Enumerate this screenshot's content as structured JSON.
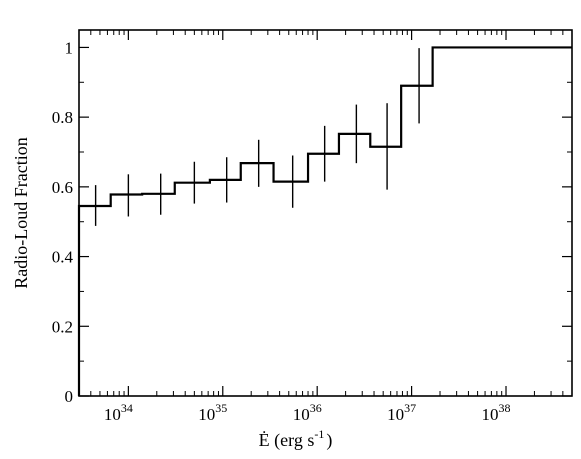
{
  "chart_data": {
    "type": "line",
    "title": "",
    "xlabel": "Ė (erg s",
    "xlabel_sup": "-1",
    "xlabel_end": ")",
    "ylabel": "Radio-Loud Fraction",
    "x_scale": "log",
    "xlim": [
      3e+33,
      5e+38
    ],
    "ylim": [
      0,
      1.05
    ],
    "grid": false,
    "x_ticks": [
      {
        "value": 1e+34,
        "base": "10",
        "exp": "34"
      },
      {
        "value": 1e+35,
        "base": "10",
        "exp": "35"
      },
      {
        "value": 1e+36,
        "base": "10",
        "exp": "36"
      },
      {
        "value": 1e+37,
        "base": "10",
        "exp": "37"
      },
      {
        "value": 1e+38,
        "base": "10",
        "exp": "38"
      }
    ],
    "y_ticks": [
      {
        "value": 0,
        "label": "0"
      },
      {
        "value": 0.2,
        "label": "0.2"
      },
      {
        "value": 0.4,
        "label": "0.4"
      },
      {
        "value": 0.6,
        "label": "0.6"
      },
      {
        "value": 0.8,
        "label": "0.8"
      },
      {
        "value": 1.0,
        "label": "1"
      }
    ],
    "series": [
      {
        "step_x": [
          3e+33,
          3e+33,
          6.5e+33,
          1.4e+34,
          3.1e+34,
          7.3e+34,
          1.55e+35,
          3.45e+35,
          8e+35,
          1.7e+36,
          3.65e+36,
          7.75e+36,
          1.67e+37,
          5e+38
        ],
        "step_y": [
          0,
          0.545,
          0.578,
          0.58,
          0.612,
          0.62,
          0.668,
          0.615,
          0.695,
          0.752,
          0.715,
          0.89,
          1.0
        ],
        "points": [
          {
            "x": 4.5e+33,
            "y": 0.545,
            "lo": 0.488,
            "hi": 0.605
          },
          {
            "x": 1e+34,
            "y": 0.578,
            "lo": 0.515,
            "hi": 0.636
          },
          {
            "x": 2.2e+34,
            "y": 0.58,
            "lo": 0.52,
            "hi": 0.638
          },
          {
            "x": 5e+34,
            "y": 0.612,
            "lo": 0.552,
            "hi": 0.672
          },
          {
            "x": 1.1e+35,
            "y": 0.62,
            "lo": 0.555,
            "hi": 0.685
          },
          {
            "x": 2.4e+35,
            "y": 0.668,
            "lo": 0.6,
            "hi": 0.735
          },
          {
            "x": 5.5e+35,
            "y": 0.615,
            "lo": 0.54,
            "hi": 0.69
          },
          {
            "x": 1.2e+36,
            "y": 0.695,
            "lo": 0.615,
            "hi": 0.775
          },
          {
            "x": 2.6e+36,
            "y": 0.752,
            "lo": 0.668,
            "hi": 0.836
          },
          {
            "x": 5.5e+36,
            "y": 0.715,
            "lo": 0.592,
            "hi": 0.84
          },
          {
            "x": 1.2e+37,
            "y": 0.89,
            "lo": 0.782,
            "hi": 0.998
          }
        ]
      }
    ]
  }
}
